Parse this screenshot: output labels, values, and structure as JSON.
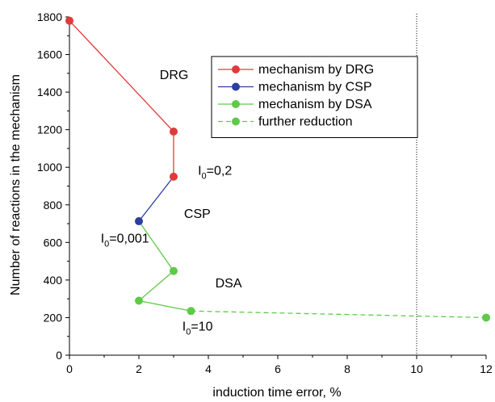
{
  "chart_data": {
    "type": "line",
    "xlabel": "induction time error, %",
    "ylabel": "Number of reactions in the mechanism",
    "xlim": [
      0,
      12
    ],
    "ylim": [
      0,
      1800
    ],
    "xticks": [
      0,
      2,
      4,
      6,
      8,
      10,
      12
    ],
    "yticks": [
      0,
      200,
      400,
      600,
      800,
      1000,
      1200,
      1400,
      1600,
      1800
    ],
    "grid": false,
    "legend_position": "top-right",
    "vline_x": 10,
    "series": [
      {
        "name": "mechanism by DRG",
        "color": "#e03a3a",
        "dashed": false,
        "points": [
          [
            0,
            1780
          ],
          [
            3,
            1190
          ],
          [
            3,
            950
          ]
        ]
      },
      {
        "name": "mechanism by CSP",
        "color": "#2c3e9e",
        "dashed": false,
        "points": [
          [
            3,
            950
          ],
          [
            2,
            713
          ]
        ]
      },
      {
        "name": "mechanism by DSA",
        "color": "#5fc94a",
        "dashed": false,
        "points": [
          [
            2,
            713
          ],
          [
            3,
            448
          ],
          [
            2,
            290
          ],
          [
            3.5,
            235
          ]
        ]
      },
      {
        "name": "further reduction",
        "color": "#5fc94a",
        "dashed": true,
        "points": [
          [
            3.5,
            235
          ],
          [
            12,
            200
          ]
        ]
      }
    ],
    "point_series": [
      {
        "color": "#e03a3a",
        "points": [
          [
            0,
            1780
          ],
          [
            3,
            1190
          ],
          [
            3,
            950
          ]
        ]
      },
      {
        "color": "#2c3e9e",
        "points": [
          [
            2,
            713
          ]
        ]
      },
      {
        "color": "#5fc94a",
        "points": [
          [
            3,
            448
          ],
          [
            2,
            290
          ],
          [
            3.5,
            235
          ],
          [
            12,
            200
          ]
        ]
      }
    ],
    "annotations": [
      {
        "text": "DRG",
        "x": 2.6,
        "y": 1470,
        "color": "#e03a3a"
      },
      {
        "text": "CSP",
        "x": 3.3,
        "y": 730,
        "color": "#2c3e9e"
      },
      {
        "text": "DSA",
        "x": 4.2,
        "y": 360,
        "color": "#5fc94a"
      },
      {
        "text": "I",
        "sub": "0",
        "suffix": "=0,2",
        "x": 3.7,
        "y": 960,
        "color": "#000000"
      },
      {
        "text": "I",
        "sub": "0",
        "suffix": "=0,001",
        "x": 0.9,
        "y": 600,
        "color": "#000000"
      },
      {
        "text": "I",
        "sub": "0",
        "suffix": "=10",
        "x": 3.25,
        "y": 130,
        "color": "#000000"
      }
    ]
  }
}
